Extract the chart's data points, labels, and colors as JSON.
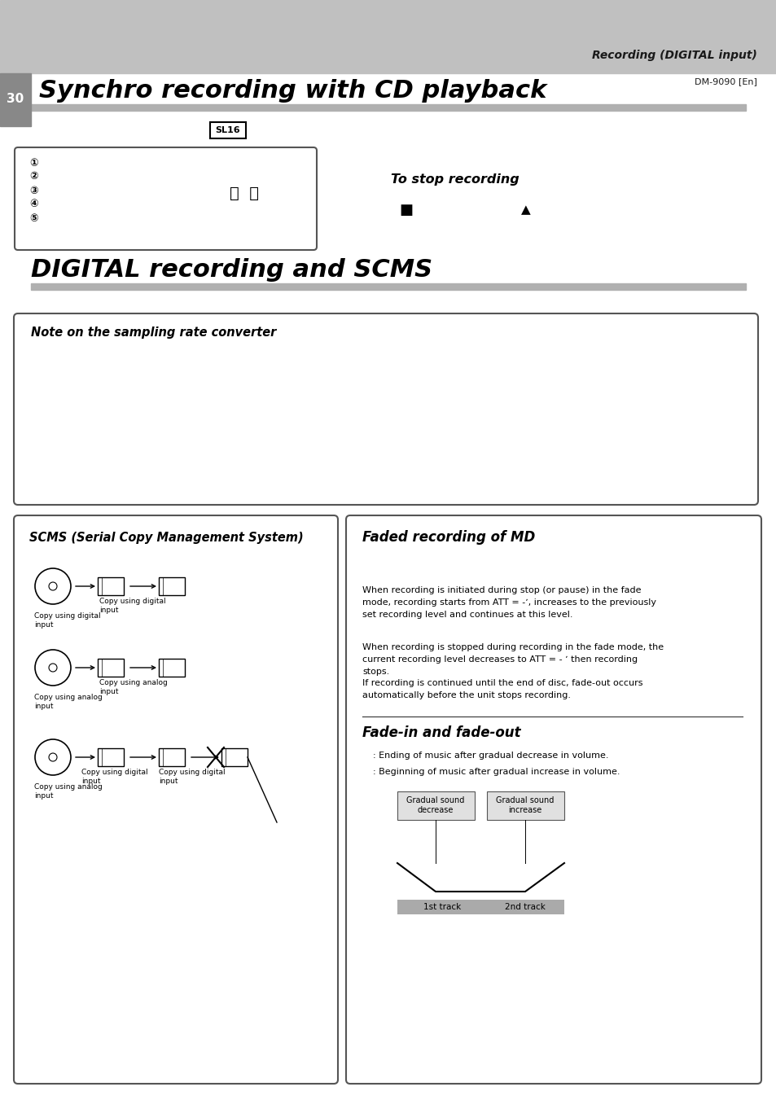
{
  "page_bg": "#ffffff",
  "header_bg": "#c0c0c0",
  "header_text": "Recording (DIGITAL input)",
  "header_subtext": "DM-9090 [En]",
  "page_number": "30",
  "page_number_bg": "#888888",
  "section1_title": "Synchro recording with CD playback",
  "section1_underline_color": "#b0b0b0",
  "sl16_text": "SL16",
  "to_stop_text": "To stop recording",
  "section2_title": "DIGITAL recording and SCMS",
  "section2_underline_color": "#b0b0b0",
  "note_box_title": "Note on the sampling rate converter",
  "scms_box_title": "SCMS (Serial Copy Management System)",
  "faded_box_title": "Faded recording of MD",
  "faded_para1": "When recording is initiated during stop (or pause) in the fade\nmode, recording starts from ATT = -ʼ, increases to the previously\nset recording level and continues at this level.",
  "faded_para2": "When recording is stopped during recording in the fade mode, the\ncurrent recording level decreases to ATT = - ʼ then recording\nstops.\nIf recording is continued until the end of disc, fade-out occurs\nautomatically before the unit stops recording.",
  "fade_subtitle": "Fade-in and fade-out",
  "fade_bullet1": ": Ending of music after gradual decrease in volume.",
  "fade_bullet2": ": Beginning of music after gradual increase in volume.",
  "gradual_decrease": "Gradual sound\ndecrease",
  "gradual_increase": "Gradual sound\nincrease",
  "track1": "1st track",
  "track2": "2nd track"
}
